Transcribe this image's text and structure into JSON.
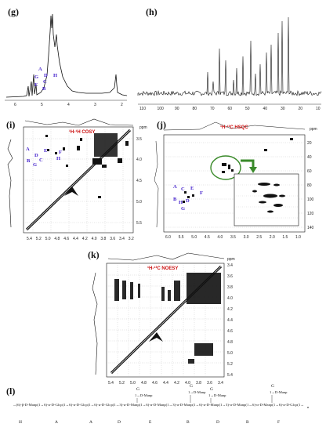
{
  "panels": {
    "g": {
      "label": "(g)",
      "peaks": [
        "A",
        "D",
        "C",
        "G",
        "E",
        "B",
        "H"
      ],
      "ticks": [
        "6",
        "5",
        "4",
        "3",
        "2"
      ]
    },
    "h": {
      "label": "(h)",
      "ticks": [
        "110",
        "100",
        "90",
        "80",
        "70",
        "60",
        "50",
        "40",
        "30",
        "20",
        "10"
      ]
    },
    "i": {
      "label": "(i)",
      "title": "¹H-¹H COSY",
      "ppm": "ppm",
      "xticks": [
        "5.4",
        "5.2",
        "5.0",
        "4.8",
        "4.6",
        "4.4",
        "4.2",
        "4.0",
        "3.8",
        "3.6",
        "3.4",
        "3.2"
      ],
      "yticks": [
        "3.5",
        "4.0",
        "4.5",
        "5.0",
        "5.5"
      ],
      "peaks": [
        {
          "l": "A",
          "s": "H1"
        },
        {
          "l": "E",
          "s": "H1"
        },
        {
          "l": "D",
          "s": "H1"
        },
        {
          "l": "F",
          "s": "H1"
        },
        {
          "l": "B",
          "s": "H1"
        },
        {
          "l": "G",
          "s": "H1"
        },
        {
          "l": "C",
          "s": "H1"
        },
        {
          "l": "H",
          "s": "H1"
        }
      ]
    },
    "j": {
      "label": "(j)",
      "title": "¹H-¹³C HSQC",
      "ppm": "ppm",
      "xticks": [
        "6.0",
        "5.5",
        "5.0",
        "4.5",
        "4.0",
        "3.5",
        "3.0",
        "2.5",
        "2.0",
        "1.5",
        "1.0"
      ],
      "yticks": [
        "20",
        "40",
        "60",
        "80",
        "100",
        "120",
        "140"
      ],
      "peaks": [
        {
          "l": "A",
          "s": "C1"
        },
        {
          "l": "E",
          "s": "C1"
        },
        {
          "l": "C",
          "s": "C1"
        },
        {
          "l": "F",
          "s": "C1"
        },
        {
          "l": "B",
          "s": "C1"
        },
        {
          "l": "D",
          "s": "C1"
        },
        {
          "l": "H",
          "s": "C1"
        },
        {
          "l": "G",
          "s": "C1"
        }
      ]
    },
    "k": {
      "label": "(k)",
      "title": "¹H-¹³C NOESY",
      "ppm": "ppm",
      "xticks": [
        "5.4",
        "5.2",
        "5.0",
        "4.8",
        "4.6",
        "4.4",
        "4.2",
        "4.0",
        "3.8",
        "3.6",
        "3.4"
      ],
      "yticks": [
        "3.4",
        "3.6",
        "3.8",
        "4.0",
        "4.2",
        "4.4",
        "4.6",
        "4.8",
        "5.0",
        "5.2",
        "5.4"
      ]
    },
    "l": {
      "label": "(l)",
      "chain": "→)6)-β-D-Manp(1→6)-α-D-Glcp(1→6)-α-D-Glcp(1→6)-α-D-Glcp(1→3)-α-D-Manp(1→6)-α-D-Manp(1→3)-α-D-Manp(1→6)-α-D-Manp(1→3)-α-D-Manp(1→6)-α-D-Manp(1→6)-α-D-Glcp(1→",
      "branch": "1→D-Manp",
      "branch_letters": [
        "G",
        "G",
        "G",
        "G"
      ],
      "residues": [
        "H",
        "A",
        "A",
        "D",
        "E",
        "B",
        "D",
        "B",
        "F"
      ],
      "n": "n"
    }
  }
}
